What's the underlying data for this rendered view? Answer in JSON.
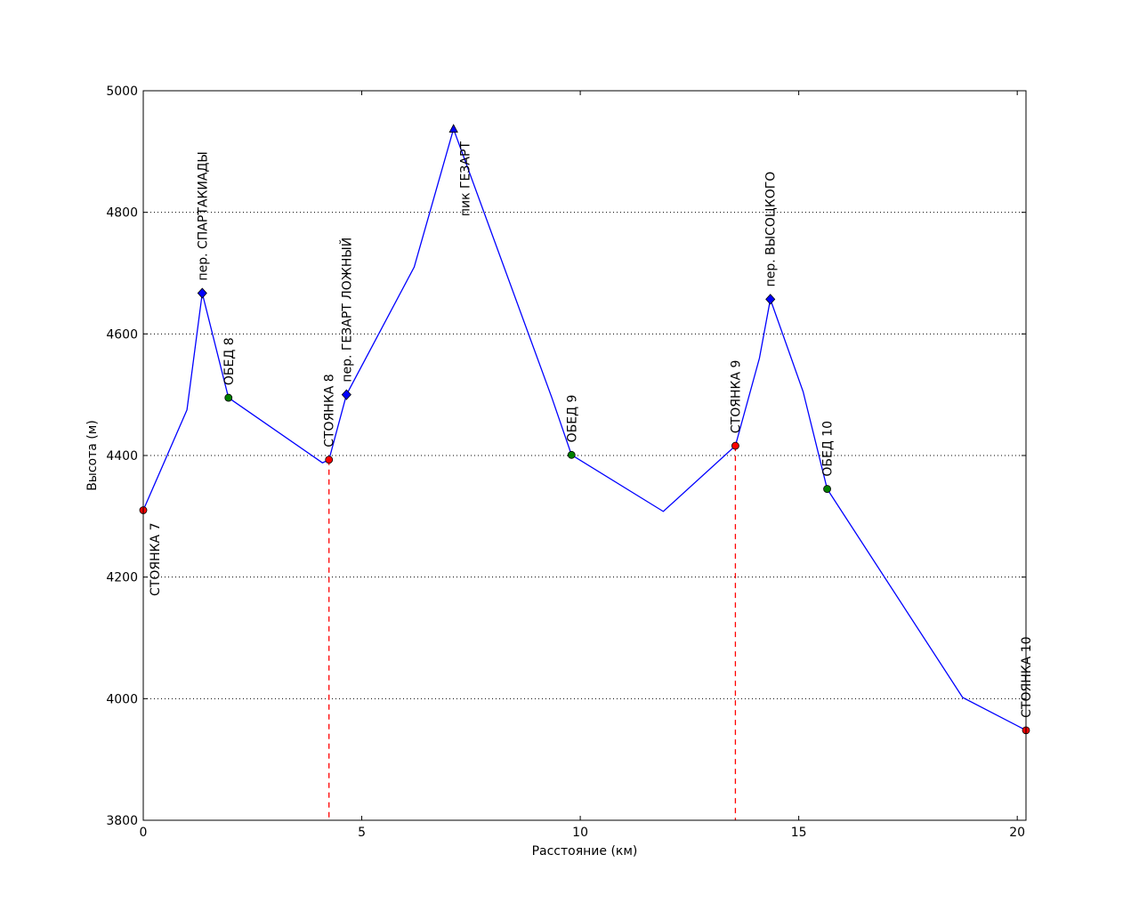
{
  "chart_data": {
    "type": "line",
    "title": "",
    "xlabel": "Расстояние (км)",
    "ylabel": "Высота (м)",
    "xlim": [
      0,
      20.2
    ],
    "ylim": [
      3800,
      5000
    ],
    "xticks": [
      0,
      5,
      10,
      15,
      20
    ],
    "yticks": [
      3800,
      4000,
      4200,
      4400,
      4600,
      4800,
      5000
    ],
    "grid": {
      "y": true,
      "x": false,
      "style": "dotted"
    },
    "line_color": "#0000ff",
    "profile": {
      "x": [
        0,
        1.0,
        1.35,
        1.95,
        4.1,
        4.25,
        4.65,
        6.2,
        7.1,
        9.35,
        9.8,
        11.9,
        13.55,
        14.1,
        14.35,
        15.1,
        15.65,
        18.75,
        20.2
      ],
      "y": [
        4310,
        4475,
        4667,
        4495,
        4388,
        4393,
        4500,
        4710,
        4937,
        4495,
        4401,
        4308,
        4416,
        4560,
        4657,
        4505,
        4345,
        4002,
        3948
      ]
    },
    "points": [
      {
        "name": "СТОЯНКА 7",
        "x": 0,
        "y": 4310,
        "kind": "camp",
        "label_position": "below"
      },
      {
        "name": "пер. СПАРТАКИАДЫ",
        "x": 1.35,
        "y": 4667,
        "kind": "pass",
        "label_position": "above"
      },
      {
        "name": "ОБЕД 8",
        "x": 1.95,
        "y": 4495,
        "kind": "lunch",
        "label_position": "above"
      },
      {
        "name": "СТОЯНКА 8",
        "x": 4.25,
        "y": 4393,
        "kind": "camp",
        "label_position": "above"
      },
      {
        "name": "пер. ГЕЗАРТ ЛОЖНЫЙ",
        "x": 4.65,
        "y": 4500,
        "kind": "pass",
        "label_position": "above"
      },
      {
        "name": "пик ГЕЗАРТ",
        "x": 7.1,
        "y": 4937,
        "kind": "peak",
        "label_position": "below"
      },
      {
        "name": "ОБЕД 9",
        "x": 9.8,
        "y": 4401,
        "kind": "lunch",
        "label_position": "above"
      },
      {
        "name": "СТОЯНКА 9",
        "x": 13.55,
        "y": 4416,
        "kind": "camp",
        "label_position": "above"
      },
      {
        "name": "пер. ВЫСОЦКОГО",
        "x": 14.35,
        "y": 4657,
        "kind": "pass",
        "label_position": "above"
      },
      {
        "name": "ОБЕД 10",
        "x": 15.65,
        "y": 4345,
        "kind": "lunch",
        "label_position": "above"
      },
      {
        "name": "СТОЯНКА 10",
        "x": 20.2,
        "y": 3948,
        "kind": "camp",
        "label_position": "above"
      }
    ],
    "day_dividers": [
      {
        "x": 4.25,
        "y": 4393,
        "color": "#ff0000",
        "style": "dashed"
      },
      {
        "x": 13.55,
        "y": 4416,
        "color": "#ff0000",
        "style": "dashed"
      }
    ],
    "marker_colors": {
      "camp": "#ff0000",
      "lunch": "#008000",
      "pass": "#0000ff",
      "peak": "#0000ff"
    }
  }
}
